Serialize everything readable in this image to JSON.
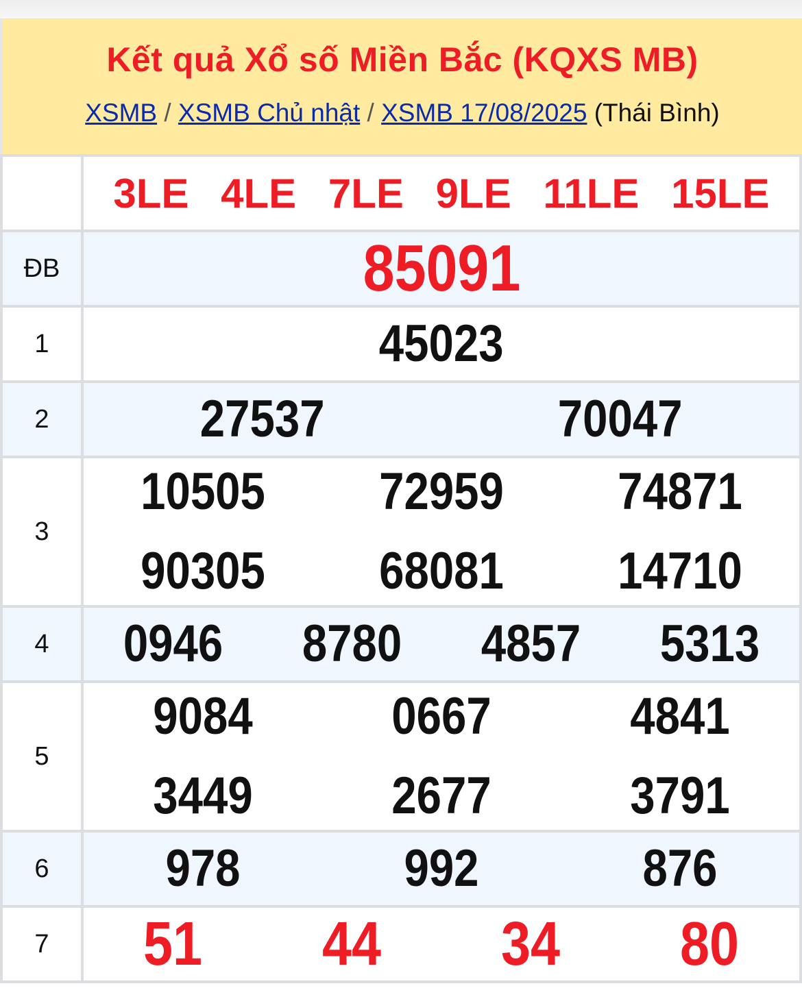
{
  "header": {
    "title": "Kết quả Xổ số Miền Bắc (KQXS MB)",
    "crumbs": [
      "XSMB",
      "XSMB Chủ nhật",
      "XSMB 17/08/2025"
    ],
    "separator": "/",
    "province": "(Thái Bình)"
  },
  "codes": [
    "3LE",
    "4LE",
    "7LE",
    "9LE",
    "11LE",
    "15LE"
  ],
  "prizes": [
    {
      "label": "ĐB",
      "numbers": [
        "85091"
      ]
    },
    {
      "label": "1",
      "numbers": [
        "45023"
      ]
    },
    {
      "label": "2",
      "numbers": [
        "27537",
        "70047"
      ]
    },
    {
      "label": "3",
      "numbers": [
        "10505",
        "72959",
        "74871",
        "90305",
        "68081",
        "14710"
      ]
    },
    {
      "label": "4",
      "numbers": [
        "0946",
        "8780",
        "4857",
        "5313"
      ]
    },
    {
      "label": "5",
      "numbers": [
        "9084",
        "0667",
        "4841",
        "3449",
        "2677",
        "3791"
      ]
    },
    {
      "label": "6",
      "numbers": [
        "978",
        "992",
        "876"
      ]
    },
    {
      "label": "7",
      "numbers": [
        "51",
        "44",
        "34",
        "80"
      ]
    }
  ],
  "colors": {
    "accent": "#ee1c25",
    "header_bg": "#ffeaa0",
    "link": "#0a2ba8",
    "alt_row": "#eff6fe"
  }
}
